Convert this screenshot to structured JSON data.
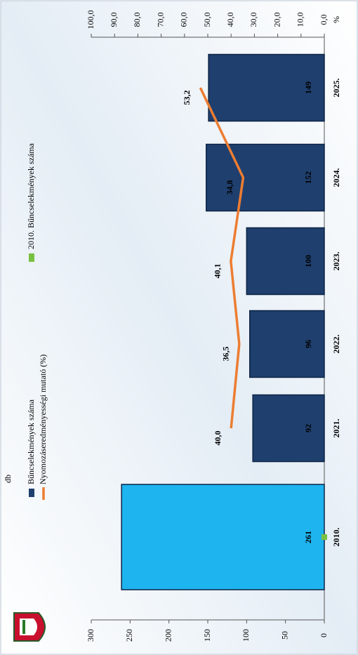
{
  "chart_data": {
    "type": "bar_line",
    "y_unit": "db",
    "y2_unit": "%",
    "categories": [
      "2010.",
      "2021.",
      "2022.",
      "2023.",
      "2024.",
      "2025."
    ],
    "series": [
      {
        "name": "2010. Bűncselekmények száma",
        "type": "bar",
        "color": "#1eb4f0",
        "marker_color": "#7ac143",
        "values": [
          261,
          null,
          null,
          null,
          null,
          null
        ]
      },
      {
        "name": "Bűncselekmények száma",
        "type": "bar",
        "color": "#1f3f6e",
        "values": [
          null,
          92,
          96,
          100,
          152,
          149
        ]
      },
      {
        "name": "Nyomozáseredményességi mutató (%)",
        "type": "line",
        "axis": "y2",
        "color": "#ed7d31",
        "values": [
          null,
          40.0,
          36.5,
          40.1,
          34.8,
          53.2
        ],
        "value_labels": [
          null,
          "40,0",
          "36,5",
          "40,1",
          "34,8",
          "53,2"
        ]
      }
    ],
    "ylim": [
      0,
      300
    ],
    "yticks": [
      0,
      50,
      100,
      150,
      200,
      250,
      300
    ],
    "y2lim": [
      0,
      100
    ],
    "y2ticks": [
      {
        "value": 0,
        "label": "0,0"
      },
      {
        "value": 10,
        "label": "10,0"
      },
      {
        "value": 20,
        "label": "20,0"
      },
      {
        "value": 30,
        "label": "30,0"
      },
      {
        "value": 40,
        "label": "40,0"
      },
      {
        "value": 50,
        "label": "50,0"
      },
      {
        "value": 60,
        "label": "60,0"
      },
      {
        "value": 70,
        "label": "70,0"
      },
      {
        "value": 80,
        "label": "80,0"
      },
      {
        "value": 90,
        "label": "90,0"
      },
      {
        "value": 100,
        "label": "100,0"
      }
    ]
  }
}
